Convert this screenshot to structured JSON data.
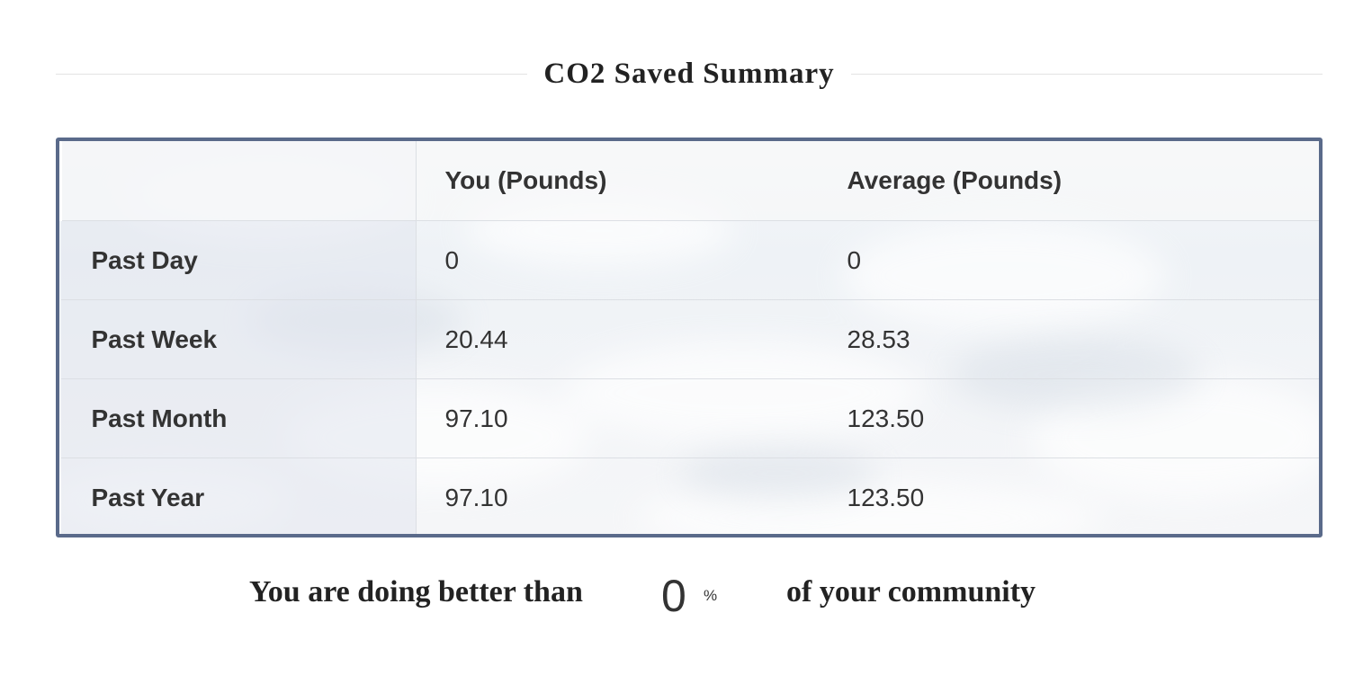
{
  "header": {
    "title": "CO2 Saved Summary"
  },
  "table": {
    "columns": [
      "",
      "You (Pounds)",
      "Average (Pounds)"
    ],
    "rows": [
      {
        "label": "Past Day",
        "you": "0",
        "average": "0"
      },
      {
        "label": "Past Week",
        "you": "20.44",
        "average": "28.53"
      },
      {
        "label": "Past Month",
        "you": "97.10",
        "average": "123.50"
      },
      {
        "label": "Past Year",
        "you": "97.10",
        "average": "123.50"
      }
    ]
  },
  "summary": {
    "prefix": "You are doing better than",
    "value": "0",
    "unit": "%",
    "suffix": "of your community"
  },
  "colors": {
    "table_border": "#5a6a8a",
    "text": "#333333",
    "heading": "#222222"
  }
}
